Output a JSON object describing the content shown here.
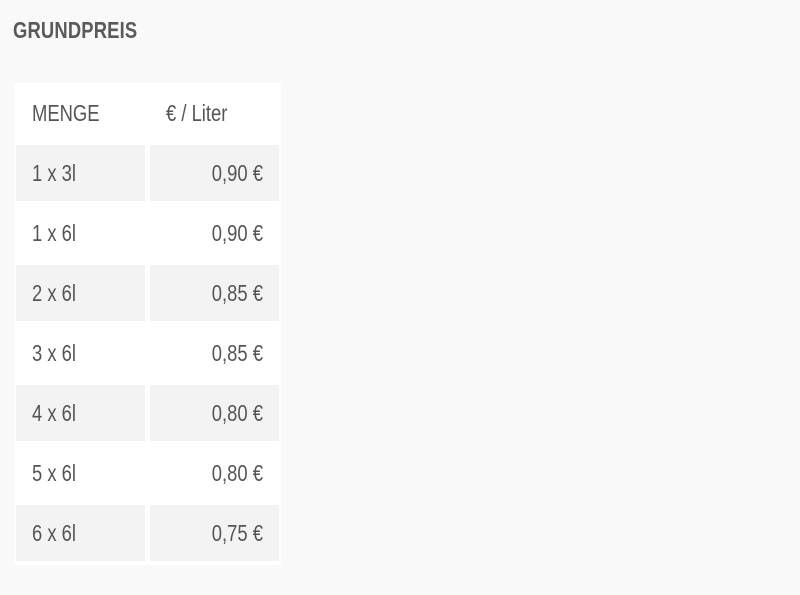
{
  "title": "GRUNDPREIS",
  "table": {
    "headers": [
      "MENGE",
      "€ / Liter"
    ],
    "rows": [
      {
        "menge": "1 x 3l",
        "preis": "0,90 €"
      },
      {
        "menge": "1 x 6l",
        "preis": "0,90 €"
      },
      {
        "menge": "2 x 6l",
        "preis": "0,85 €"
      },
      {
        "menge": "3 x 6l",
        "preis": "0,85 €"
      },
      {
        "menge": "4 x 6l",
        "preis": "0,80 €"
      },
      {
        "menge": "5 x 6l",
        "preis": "0,80 €"
      },
      {
        "menge": "6 x 6l",
        "preis": "0,75 €"
      }
    ]
  },
  "colors": {
    "background": "#f9f9f9",
    "row_shade": "#f3f3f3",
    "text": "#555555"
  }
}
